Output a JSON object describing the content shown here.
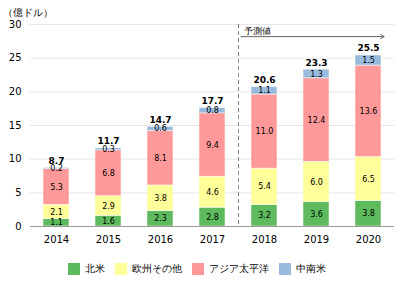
{
  "chart_data": {
    "type": "bar",
    "stacked": true,
    "data_labels": true,
    "grid": true,
    "legend": "bottom",
    "ylabel": "（億ドル）",
    "categories": [
      "2014",
      "2015",
      "2016",
      "2017",
      "2018",
      "2019",
      "2020"
    ],
    "series": [
      {
        "name": "北米",
        "color": "#5DBB5D",
        "values": [
          1.1,
          1.6,
          2.3,
          2.8,
          3.2,
          3.6,
          3.8
        ]
      },
      {
        "name": "欧州その他",
        "color": "#FFFF99",
        "values": [
          2.1,
          2.9,
          3.8,
          4.6,
          5.4,
          6.0,
          6.5
        ],
        "value_labels": [
          "2.1",
          "2.9",
          "3.8",
          "4.6",
          "5.4",
          "6.0",
          "6.5"
        ]
      },
      {
        "name": "アジア太平洋",
        "color": "#FF9999",
        "values": [
          5.3,
          6.8,
          8.1,
          9.4,
          11.0,
          12.4,
          13.6
        ],
        "value_labels": [
          "5.3",
          "6.8",
          "8.1",
          "9.4",
          "11.0",
          "12.4",
          "13.6"
        ]
      },
      {
        "name": "中南米",
        "color": "#99BBDD",
        "values": [
          0.2,
          0.3,
          0.6,
          0.8,
          1.1,
          1.3,
          1.5
        ]
      }
    ],
    "totals": [
      8.7,
      11.7,
      14.7,
      17.7,
      20.6,
      23.3,
      25.5
    ],
    "annotations": [
      {
        "text": "予測値",
        "x": "2018"
      }
    ],
    "ylim": [
      0,
      30
    ],
    "yticks": [
      0,
      5,
      10,
      15,
      20,
      25,
      30
    ]
  }
}
